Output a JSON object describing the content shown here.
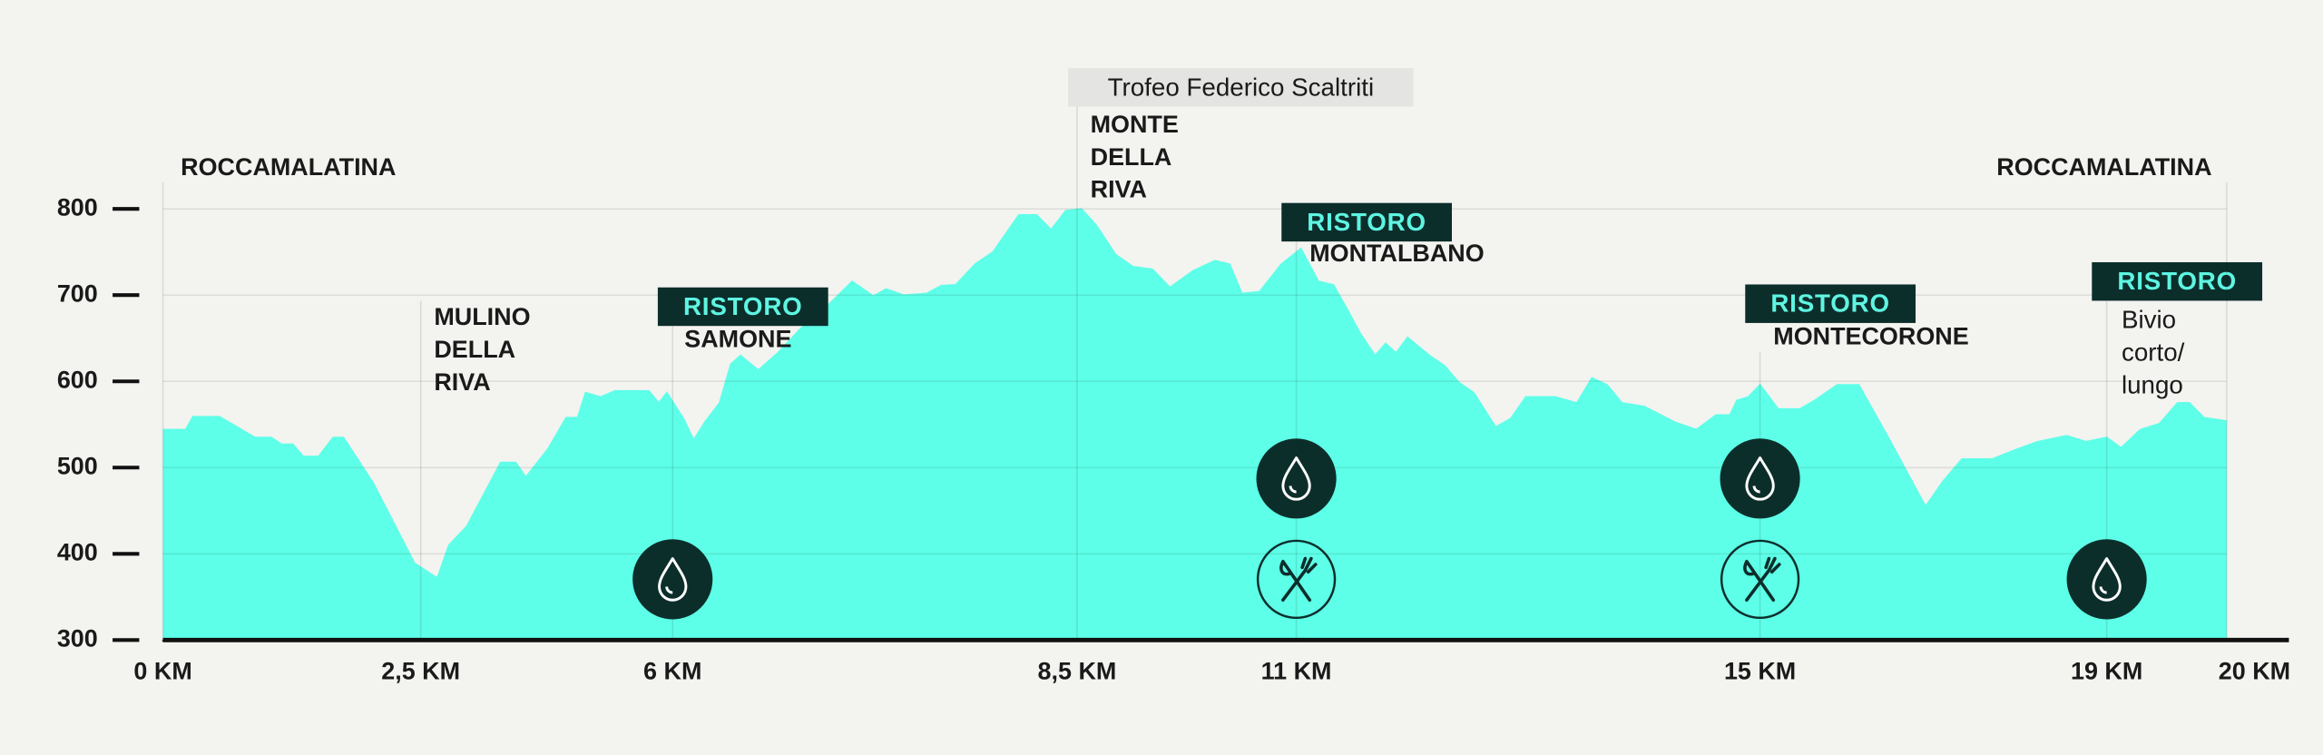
{
  "chart_data": {
    "type": "area",
    "color": "#5effe8",
    "xlim": [
      0,
      20
    ],
    "ylim": [
      300,
      800
    ],
    "xticks": [
      {
        "value": 0,
        "label": "0 KM"
      },
      {
        "value": 2.5,
        "label": "2,5 KM"
      },
      {
        "value": 6,
        "label": "6 KM"
      },
      {
        "value": 8.5,
        "label": "8,5 KM"
      },
      {
        "value": 11,
        "label": "11 KM"
      },
      {
        "value": 15,
        "label": "15 KM"
      },
      {
        "value": 19,
        "label": "19 KM"
      },
      {
        "value": 20,
        "label": "20 KM"
      }
    ],
    "yticks": [
      300,
      400,
      500,
      600,
      700,
      800
    ],
    "grid": true,
    "x": [
      0,
      0.22,
      0.29,
      0.55,
      0.89,
      1.05,
      1.15,
      1.26,
      1.36,
      1.51,
      1.65,
      1.75,
      2.04,
      2.44,
      2.73,
      2.89,
      3.14,
      3.61,
      3.82,
      3.96,
      4.27,
      4.52,
      4.68,
      4.79,
      5.0,
      5.2,
      5.67,
      5.81,
      5.92,
      6.07,
      6.13,
      6.2,
      6.29,
      6.36,
      6.42,
      6.53,
      6.65,
      6.79,
      6.97,
      7.11,
      7.24,
      7.32,
      7.43,
      7.57,
      7.66,
      7.75,
      7.87,
      7.98,
      8.14,
      8.25,
      8.34,
      8.43,
      8.55,
      8.72,
      8.94,
      9.14,
      9.36,
      9.56,
      9.82,
      10.07,
      10.24,
      10.38,
      10.58,
      10.83,
      11.04,
      11.19,
      11.32,
      11.45,
      11.55,
      11.68,
      11.77,
      11.86,
      11.96,
      12.15,
      12.28,
      12.4,
      12.53,
      12.72,
      12.85,
      12.98,
      13.23,
      13.42,
      13.55,
      13.68,
      13.81,
      14.0,
      14.26,
      14.45,
      14.62,
      14.74,
      14.8,
      14.9,
      15.0,
      15.21,
      15.46,
      15.63,
      15.89,
      16.14,
      16.48,
      16.91,
      17.11,
      17.33,
      17.68,
      17.93,
      18.2,
      18.54,
      18.76,
      19.0,
      19.12,
      19.28,
      19.44,
      19.59,
      19.69,
      19.81,
      20.0
    ],
    "values": [
      544,
      544,
      559,
      559,
      535,
      535,
      527,
      527,
      513,
      513,
      535,
      535,
      482,
      389,
      372,
      410,
      432,
      506,
      506,
      489,
      522,
      558,
      558,
      587,
      582,
      589,
      589,
      575,
      587,
      556,
      532,
      553,
      575,
      620,
      630,
      613,
      633,
      661,
      690,
      716,
      699,
      707,
      700,
      702,
      711,
      712,
      736,
      750,
      793,
      793,
      776,
      798,
      800,
      781,
      747,
      733,
      730,
      709,
      728,
      740,
      736,
      702,
      704,
      736,
      754,
      716,
      712,
      681,
      656,
      630,
      644,
      633,
      651,
      630,
      618,
      599,
      587,
      547,
      557,
      582,
      582,
      575,
      604,
      596,
      575,
      571,
      553,
      544,
      561,
      561,
      578,
      582,
      596,
      568,
      568,
      578,
      596,
      596,
      535,
      455,
      484,
      510,
      510,
      520,
      530,
      537,
      530,
      535,
      523,
      544,
      551,
      575,
      575,
      558,
      554
    ],
    "annotations": [
      {
        "x": 0,
        "name": [
          "ROCCAMALATINA"
        ]
      },
      {
        "x": 2.5,
        "name": [
          "MULINO",
          "DELLA",
          "RIVA"
        ]
      },
      {
        "x": 6,
        "badge": "RISTORO",
        "name": [
          "SAMONE"
        ],
        "icons": [
          "water"
        ]
      },
      {
        "x": 8.5,
        "note": "Trofeo Federico Scaltriti",
        "name": [
          "MONTE",
          "DELLA",
          "RIVA"
        ]
      },
      {
        "x": 11,
        "badge": "RISTORO",
        "name": [
          "MONTALBANO"
        ],
        "icons": [
          "water",
          "food"
        ]
      },
      {
        "x": 15,
        "badge": "RISTORO",
        "name": [
          "MONTECORONE"
        ],
        "icons": [
          "water",
          "food"
        ]
      },
      {
        "x": 19,
        "badge": "RISTORO",
        "name": [
          "Bivio",
          "corto/",
          "lungo"
        ],
        "icons": [
          "water"
        ]
      },
      {
        "x": 20,
        "name": [
          "ROCCAMALATINA"
        ]
      }
    ]
  }
}
